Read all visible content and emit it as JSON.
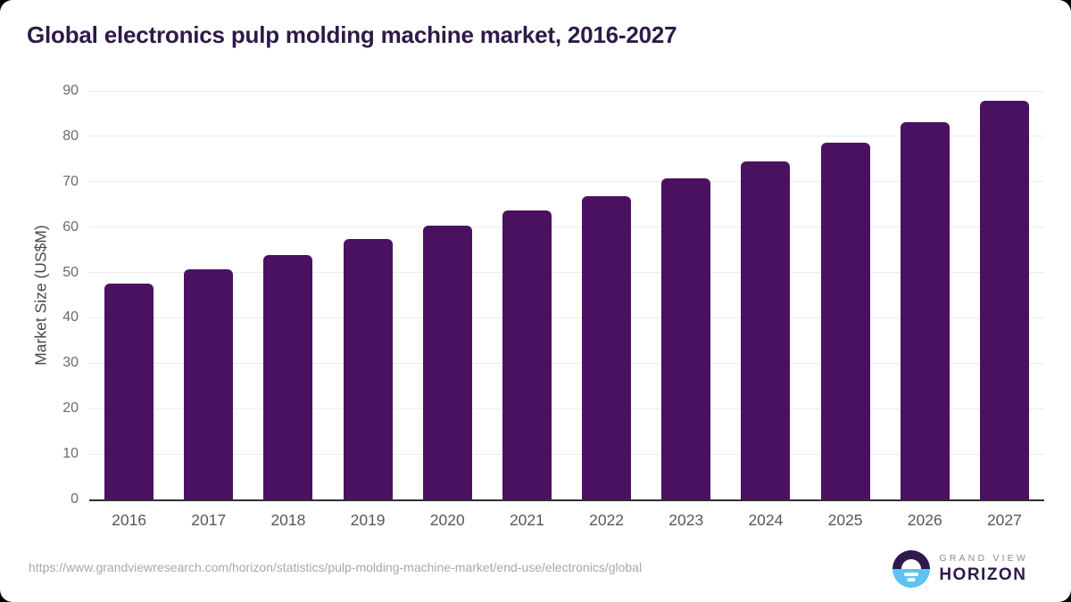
{
  "header": {
    "title": "Global electronics pulp molding machine market, 2016-2027"
  },
  "chart_data": {
    "type": "bar",
    "title": "Global electronics pulp molding machine market, 2016-2027",
    "categories": [
      "2016",
      "2017",
      "2018",
      "2019",
      "2020",
      "2021",
      "2022",
      "2023",
      "2024",
      "2025",
      "2026",
      "2027"
    ],
    "values": [
      47.6,
      50.8,
      53.9,
      57.4,
      60.4,
      63.6,
      66.9,
      70.7,
      74.5,
      78.7,
      83.1,
      87.9
    ],
    "xlabel": "",
    "ylabel": "Market Size (US$M)",
    "ylim": [
      0,
      90
    ],
    "ytick_step": 10,
    "grid": true,
    "legend": "none",
    "bar_color": "#4a1161"
  },
  "footer": {
    "source_url": "https://www.grandviewresearch.com/horizon/statistics/pulp-molding-machine-market/end-use/electronics/global",
    "logo": {
      "brand_top": "GRAND VIEW",
      "brand_bottom": "HORIZON"
    }
  },
  "colors": {
    "bar": "#4a1161",
    "title": "#2e1a47",
    "grid": "#ececec",
    "baseline": "#2f2f2f",
    "tick_label": "#6b6b6b",
    "axis_label": "#57585a",
    "url": "#a8a8a8",
    "logo_purple": "#301a4d",
    "logo_purple_text": "#2e1a47",
    "logo_blue": "#5fc3f1",
    "brand_gray": "#8b8b94"
  }
}
